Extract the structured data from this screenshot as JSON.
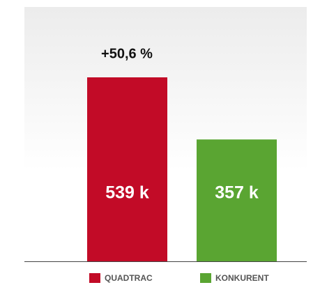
{
  "chart_data": {
    "type": "bar",
    "annotation": "+50,6 %",
    "series": [
      {
        "name": "QUADTRAC",
        "color": "#c20b27",
        "values": [
          539
        ],
        "value_labels": [
          "539 k"
        ]
      },
      {
        "name": "KONKURENT",
        "color": "#5aa532",
        "values": [
          357
        ],
        "value_labels": [
          "357 k"
        ]
      }
    ]
  }
}
